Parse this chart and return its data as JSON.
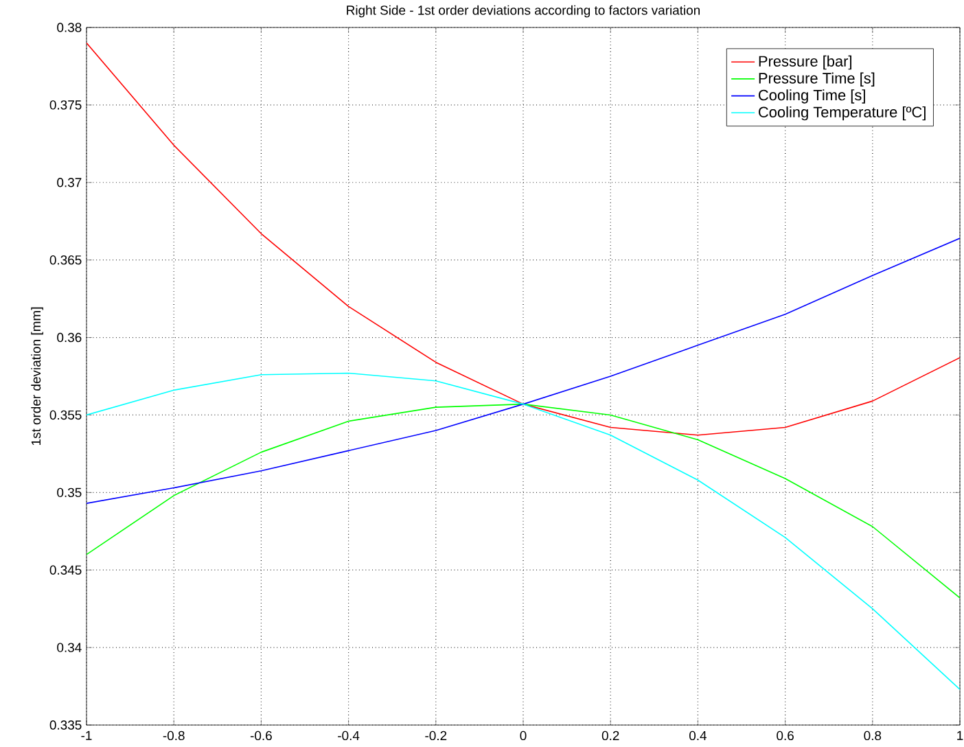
{
  "chart_data": {
    "type": "line",
    "title": "Right Side - 1st order deviations according to factors variation",
    "ylabel": "1st order deviation [mm]",
    "x": [
      -1,
      -0.8,
      -0.6,
      -0.4,
      -0.2,
      0,
      0.2,
      0.4,
      0.6,
      0.8,
      1
    ],
    "series": [
      {
        "name": "Pressure [bar]",
        "color": "#ff0000",
        "values": [
          0.379,
          0.3724,
          0.3667,
          0.362,
          0.3584,
          0.3557,
          0.3542,
          0.3537,
          0.3542,
          0.3559,
          0.3587
        ]
      },
      {
        "name": "Pressure Time [s]",
        "color": "#00ff00",
        "values": [
          0.346,
          0.3498,
          0.3526,
          0.3546,
          0.3555,
          0.3557,
          0.355,
          0.3534,
          0.3509,
          0.3478,
          0.3432
        ]
      },
      {
        "name": "Cooling Time [s]",
        "color": "#0000ff",
        "values": [
          0.3493,
          0.3503,
          0.3514,
          0.3527,
          0.354,
          0.3557,
          0.3575,
          0.3595,
          0.3615,
          0.364,
          0.3664
        ]
      },
      {
        "name": "Cooling Temperature [ºC]",
        "color": "#00ffff",
        "values": [
          0.355,
          0.3566,
          0.3576,
          0.3577,
          0.3572,
          0.3557,
          0.3537,
          0.3508,
          0.3471,
          0.3425,
          0.3373
        ]
      }
    ],
    "xlim": [
      -1,
      1
    ],
    "ylim": [
      0.335,
      0.38
    ],
    "xticks": [
      -1,
      -0.8,
      -0.6,
      -0.4,
      -0.2,
      0,
      0.2,
      0.4,
      0.6,
      0.8,
      1
    ],
    "yticks": [
      0.335,
      0.34,
      0.345,
      0.35,
      0.355,
      0.36,
      0.365,
      0.37,
      0.375,
      0.38
    ],
    "grid": true,
    "legend": "top right",
    "line_style": "solid",
    "marker": "none"
  }
}
